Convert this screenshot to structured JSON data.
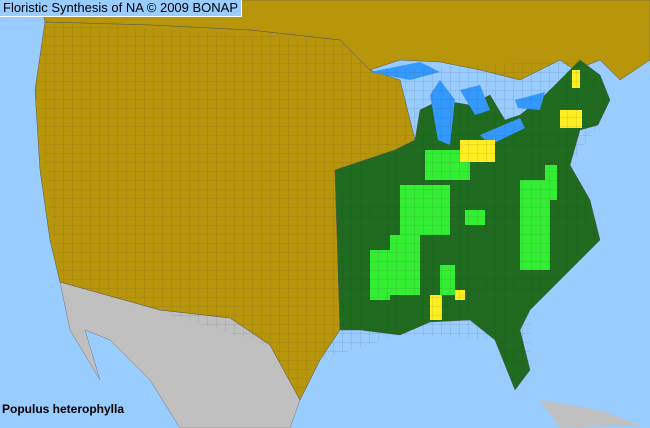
{
  "title": "Floristic Synthesis of NA © 2009 BONAP",
  "species": "Populus heterophylla",
  "colors": {
    "ocean": "#99ccff",
    "absent_states": "#b8960c",
    "present_states": "#1f6b1f",
    "county_native": "#33ee33",
    "county_rare": "#ffee22",
    "non_covered": "#c0c0c0",
    "county_lines": "#555555"
  }
}
